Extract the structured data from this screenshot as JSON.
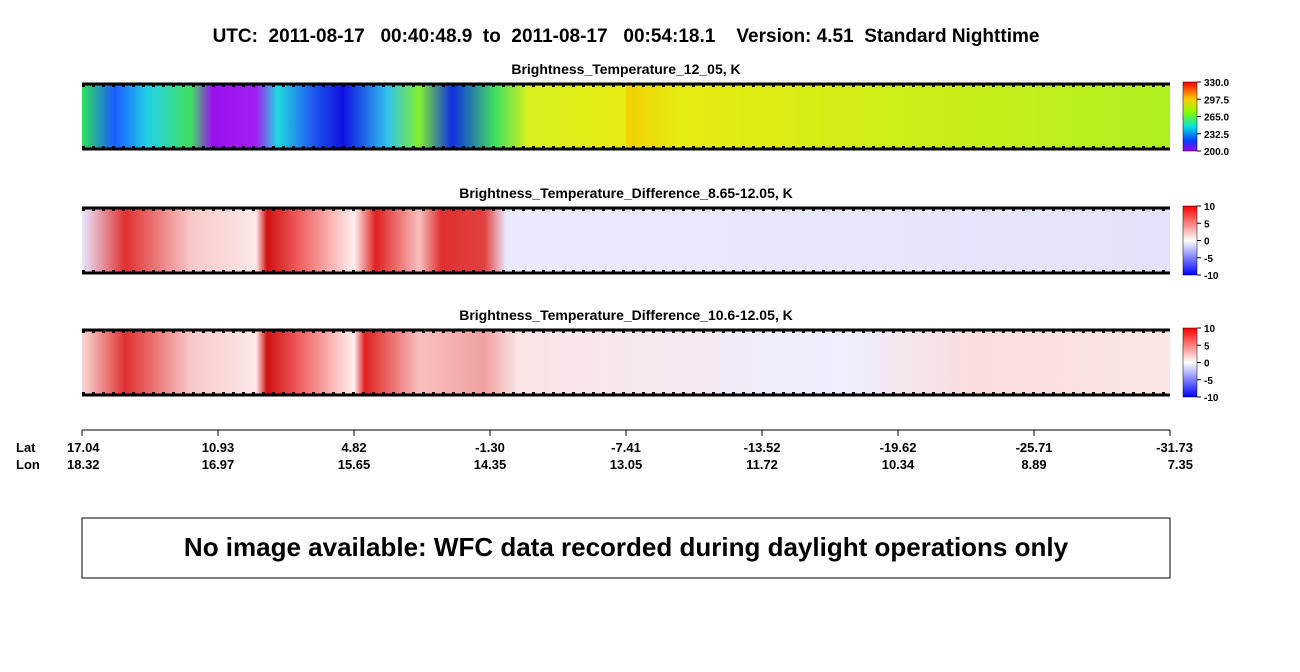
{
  "title": "UTC:  2011-08-17   00:40:48.9  to  2011-08-17   00:54:18.1    Version: 4.51  Standard Nighttime",
  "panels": [
    {
      "title": "Brightness_Temperature_12_05, K",
      "colorbar_ticks": [
        {
          "value": 330,
          "label": "330.0"
        },
        {
          "value": 297.5,
          "label": "297.5"
        },
        {
          "value": 265,
          "label": "265.0"
        },
        {
          "value": 232.5,
          "label": "232.5"
        },
        {
          "value": 200,
          "label": "200.0"
        }
      ]
    },
    {
      "title": "Brightness_Temperature_Difference_8.65-12.05, K",
      "colorbar_ticks": [
        10,
        5,
        0,
        -5,
        -10
      ]
    },
    {
      "title": "Brightness_Temperature_Difference_10.6-12.05, K",
      "colorbar_ticks": [
        10,
        5,
        0,
        -5,
        -10
      ]
    }
  ],
  "axis": {
    "lat_label": "Lat",
    "lon_label": "Lon",
    "lat": [
      17.04,
      10.93,
      4.82,
      {
        "value": -1.3,
        "label": "-1.30"
      },
      -7.41,
      -13.52,
      -19.62,
      -25.71,
      -31.73
    ],
    "lon": [
      18.32,
      16.97,
      15.65,
      14.35,
      13.05,
      11.72,
      10.34,
      8.89,
      7.35
    ]
  },
  "message": "No image available: WFC data recorded during daylight operations only"
}
